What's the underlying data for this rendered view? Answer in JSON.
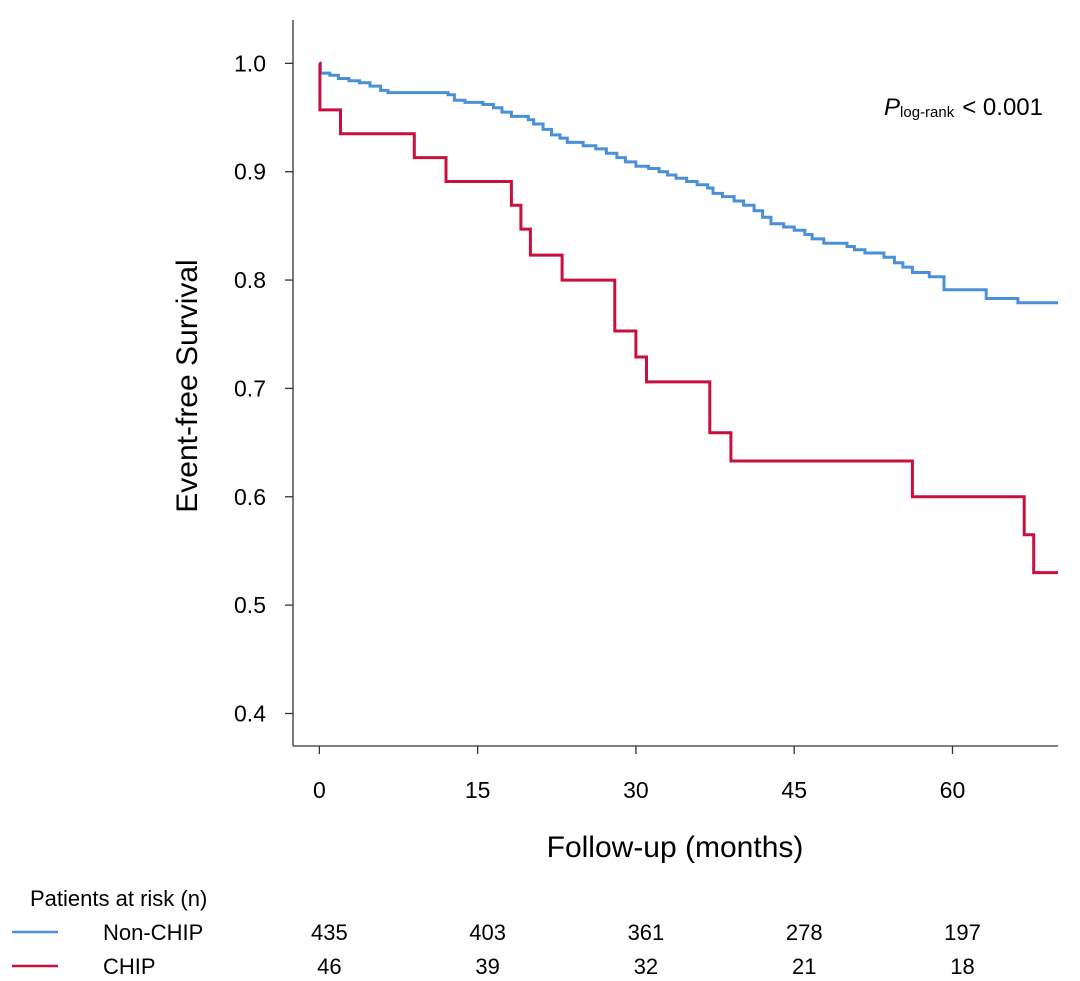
{
  "chart_data": {
    "type": "line",
    "subtype": "kaplan-meier-step",
    "xlabel": "Follow-up (months)",
    "ylabel": "Event-free Survival",
    "xlim": [
      -2.5,
      70
    ],
    "ylim": [
      0.37,
      1.04
    ],
    "xticks": [
      0,
      15,
      30,
      45,
      60
    ],
    "xtick_labels": [
      "0",
      "15",
      "30",
      "45",
      "60"
    ],
    "yticks": [
      0.4,
      0.5,
      0.6,
      0.7,
      0.8,
      0.9,
      1.0
    ],
    "ytick_labels": [
      "0.4",
      "0.5",
      "0.6",
      "0.7",
      "0.8",
      "0.9",
      "1.0"
    ],
    "annotation": {
      "p_symbol": "P",
      "p_subscript": "log-rank",
      "p_text": "< 0.001"
    },
    "series": [
      {
        "name": "Non-CHIP",
        "color": "#4a90d9",
        "points": [
          [
            0,
            1.0
          ],
          [
            0.1,
            0.991
          ],
          [
            1.0,
            0.989
          ],
          [
            1.8,
            0.986
          ],
          [
            2.8,
            0.984
          ],
          [
            3.8,
            0.982
          ],
          [
            4.8,
            0.979
          ],
          [
            5.8,
            0.975
          ],
          [
            6.5,
            0.973
          ],
          [
            12.2,
            0.971
          ],
          [
            12.8,
            0.966
          ],
          [
            13.8,
            0.964
          ],
          [
            15.5,
            0.962
          ],
          [
            16.5,
            0.959
          ],
          [
            17.3,
            0.955
          ],
          [
            18.2,
            0.951
          ],
          [
            19.8,
            0.948
          ],
          [
            20.3,
            0.944
          ],
          [
            21.2,
            0.939
          ],
          [
            22.0,
            0.934
          ],
          [
            22.8,
            0.931
          ],
          [
            23.5,
            0.927
          ],
          [
            25.0,
            0.924
          ],
          [
            26.2,
            0.921
          ],
          [
            27.2,
            0.917
          ],
          [
            28.2,
            0.913
          ],
          [
            29.0,
            0.909
          ],
          [
            30.0,
            0.905
          ],
          [
            31.2,
            0.903
          ],
          [
            32.2,
            0.9
          ],
          [
            33.0,
            0.897
          ],
          [
            33.8,
            0.894
          ],
          [
            34.8,
            0.891
          ],
          [
            35.8,
            0.888
          ],
          [
            36.8,
            0.885
          ],
          [
            37.3,
            0.88
          ],
          [
            38.2,
            0.877
          ],
          [
            39.3,
            0.873
          ],
          [
            40.2,
            0.869
          ],
          [
            41.2,
            0.864
          ],
          [
            42.0,
            0.858
          ],
          [
            42.8,
            0.852
          ],
          [
            44.0,
            0.849
          ],
          [
            45.0,
            0.846
          ],
          [
            46.0,
            0.842
          ],
          [
            46.7,
            0.838
          ],
          [
            47.8,
            0.834
          ],
          [
            50.0,
            0.831
          ],
          [
            50.7,
            0.828
          ],
          [
            51.7,
            0.825
          ],
          [
            53.5,
            0.821
          ],
          [
            54.5,
            0.816
          ],
          [
            55.3,
            0.812
          ],
          [
            56.2,
            0.807
          ],
          [
            57.8,
            0.803
          ],
          [
            59.2,
            0.791
          ],
          [
            63.2,
            0.783
          ],
          [
            66.2,
            0.779
          ],
          [
            70.0,
            0.779
          ]
        ]
      },
      {
        "name": "CHIP",
        "color": "#c8103e",
        "points": [
          [
            0,
            1.0
          ],
          [
            0.05,
            0.957
          ],
          [
            2.0,
            0.935
          ],
          [
            9.0,
            0.913
          ],
          [
            12.0,
            0.891
          ],
          [
            18.2,
            0.869
          ],
          [
            19.1,
            0.847
          ],
          [
            20.0,
            0.823
          ],
          [
            23.0,
            0.8
          ],
          [
            28.0,
            0.753
          ],
          [
            30.0,
            0.729
          ],
          [
            31.0,
            0.706
          ],
          [
            37.0,
            0.659
          ],
          [
            39.0,
            0.633
          ],
          [
            56.2,
            0.6
          ],
          [
            66.8,
            0.565
          ],
          [
            67.7,
            0.53
          ],
          [
            70.0,
            0.53
          ]
        ]
      }
    ]
  },
  "at_risk": {
    "title": "Patients at risk (n)",
    "times": [
      0,
      15,
      30,
      45,
      60
    ],
    "rows": [
      {
        "label": "Non-CHIP",
        "color": "#4a90d9",
        "counts": [
          "435",
          "403",
          "361",
          "278",
          "197"
        ]
      },
      {
        "label": "CHIP",
        "color": "#c8103e",
        "counts": [
          "46",
          "39",
          "32",
          "21",
          "18"
        ]
      }
    ]
  }
}
